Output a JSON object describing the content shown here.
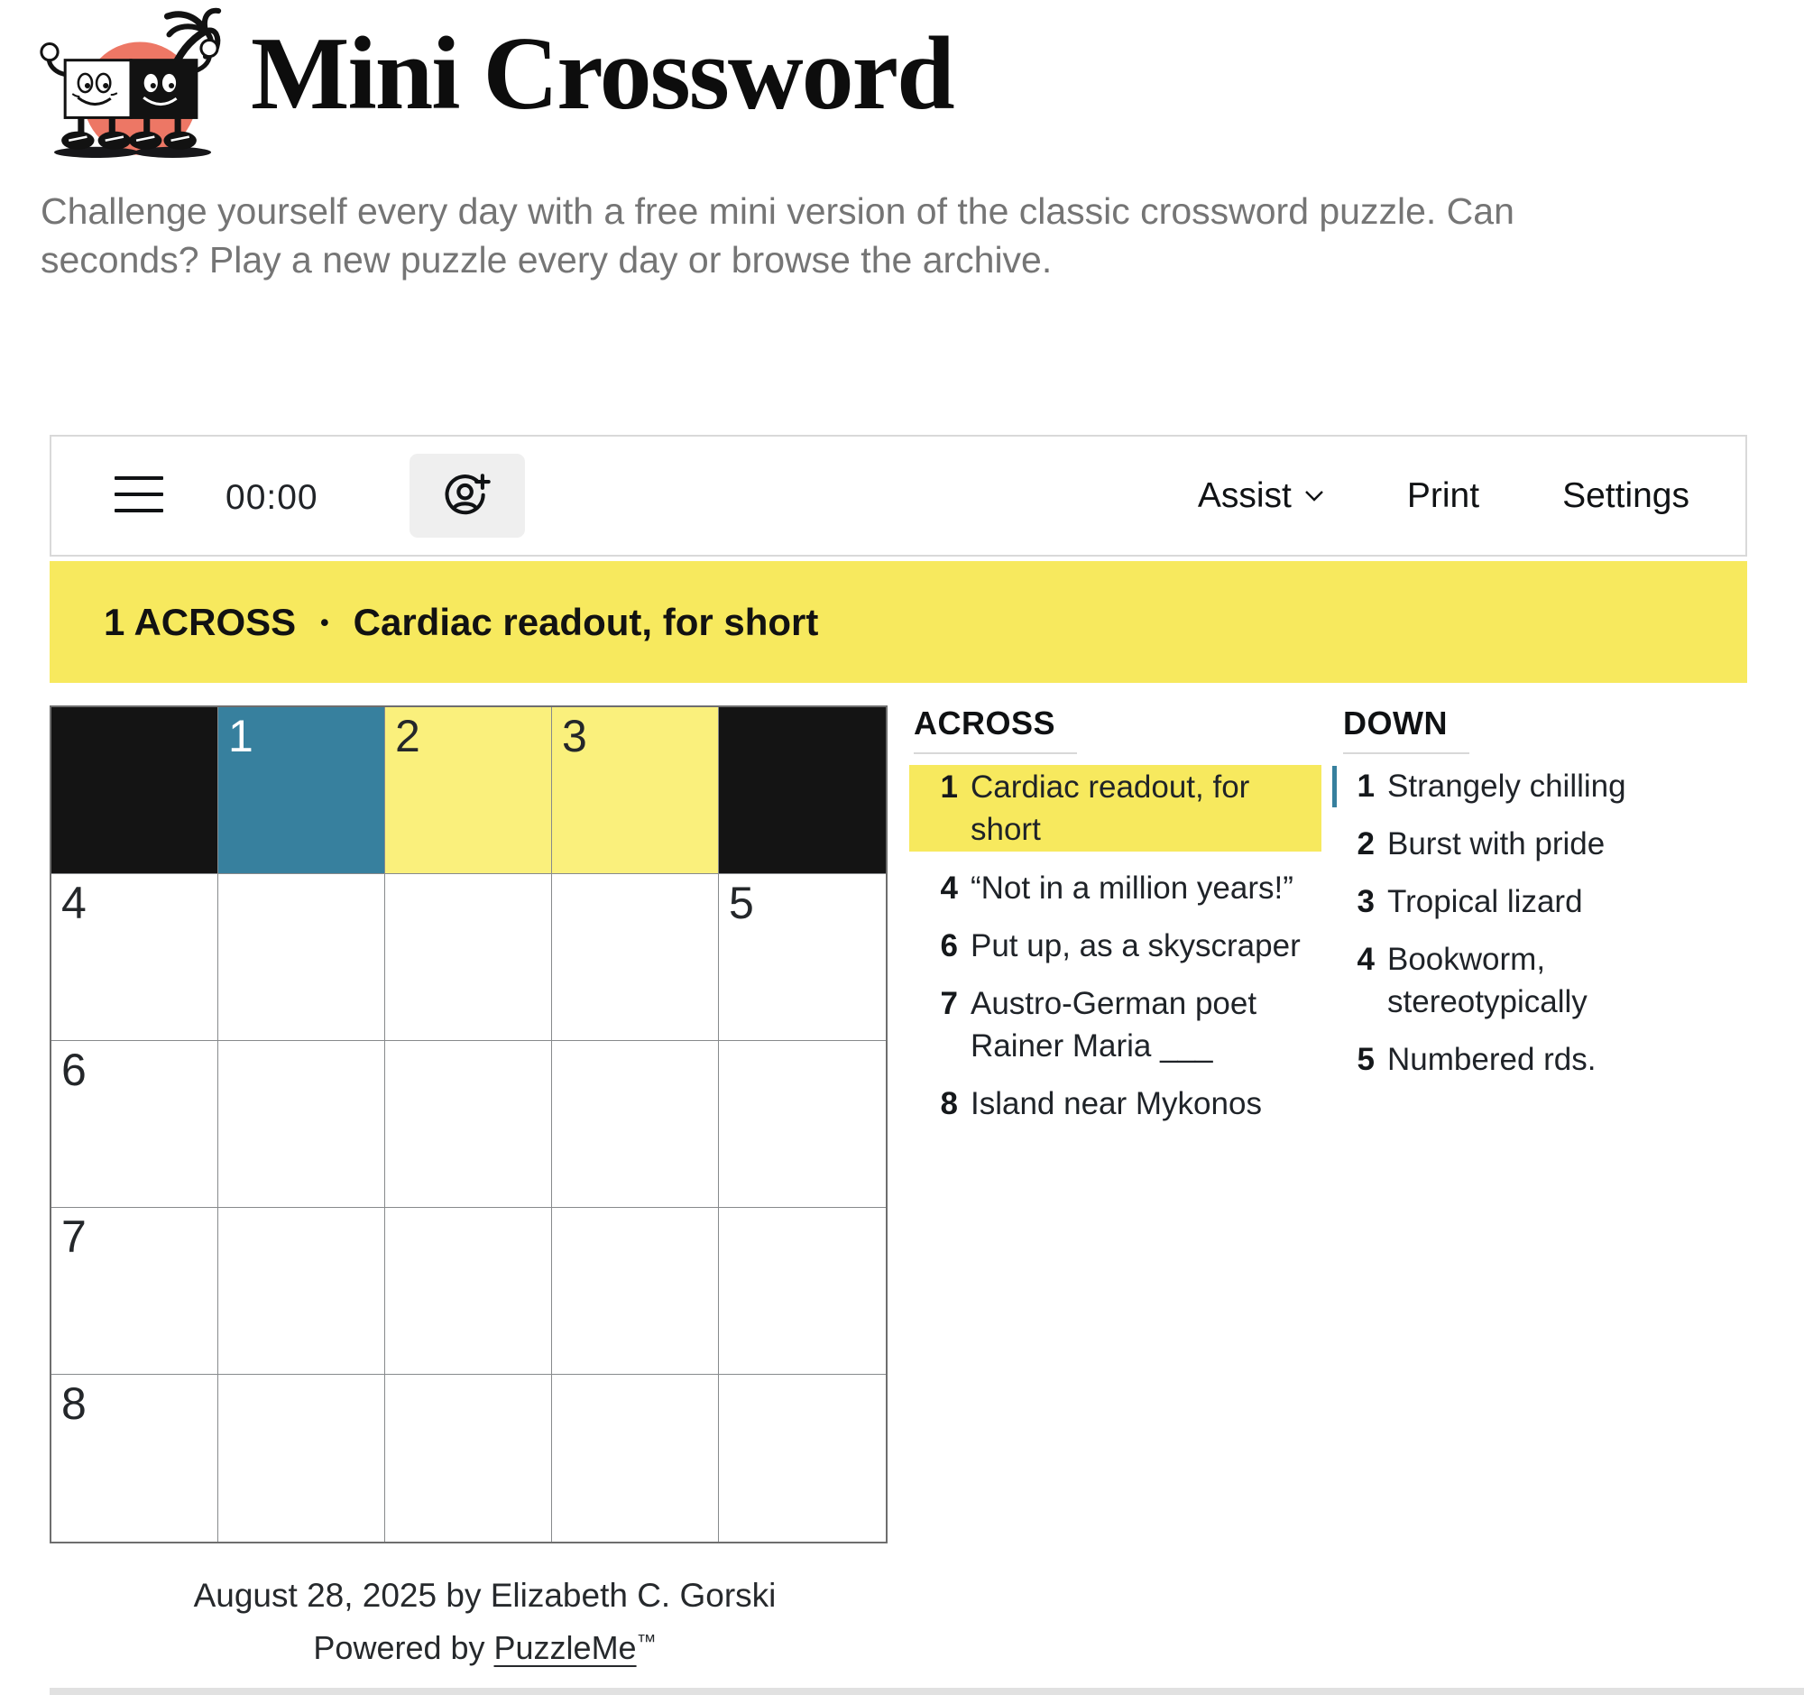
{
  "page": {
    "title": "Mini Crossword",
    "tagline_line1": "Challenge yourself every day with a free mini version of the classic crossword puzzle. Can",
    "tagline_line2": "seconds? Play a new puzzle every day or browse the archive."
  },
  "toolbar": {
    "timer": "00:00",
    "assist_label": "Assist",
    "print_label": "Print",
    "settings_label": "Settings"
  },
  "clue_banner": {
    "label": "1 ACROSS",
    "separator": "•",
    "text": "Cardiac readout, for short"
  },
  "grid": {
    "rows": [
      [
        {
          "type": "block"
        },
        {
          "type": "cell",
          "number": "1",
          "variant": "selected"
        },
        {
          "type": "cell",
          "number": "2",
          "variant": "highlight"
        },
        {
          "type": "cell",
          "number": "3",
          "variant": "highlight"
        },
        {
          "type": "block"
        }
      ],
      [
        {
          "type": "cell",
          "number": "4"
        },
        {
          "type": "cell"
        },
        {
          "type": "cell"
        },
        {
          "type": "cell"
        },
        {
          "type": "cell",
          "number": "5"
        }
      ],
      [
        {
          "type": "cell",
          "number": "6"
        },
        {
          "type": "cell"
        },
        {
          "type": "cell"
        },
        {
          "type": "cell"
        },
        {
          "type": "cell"
        }
      ],
      [
        {
          "type": "cell",
          "number": "7"
        },
        {
          "type": "cell"
        },
        {
          "type": "cell"
        },
        {
          "type": "cell"
        },
        {
          "type": "cell"
        }
      ],
      [
        {
          "type": "cell",
          "number": "8"
        },
        {
          "type": "cell"
        },
        {
          "type": "cell"
        },
        {
          "type": "cell"
        },
        {
          "type": "cell"
        }
      ]
    ]
  },
  "clues": {
    "across_title": "ACROSS",
    "down_title": "DOWN",
    "across": [
      {
        "number": "1",
        "text": "Cardiac readout, for short",
        "highlighted": true
      },
      {
        "number": "4",
        "text": "“Not in a million years!”"
      },
      {
        "number": "6",
        "text": "Put up, as a skyscraper"
      },
      {
        "number": "7",
        "text": "Austro-German poet Rainer Maria ___"
      },
      {
        "number": "8",
        "text": "Island near Mykonos"
      }
    ],
    "down": [
      {
        "number": "1",
        "text": "Strangely chilling",
        "marked": true
      },
      {
        "number": "2",
        "text": "Burst with pride"
      },
      {
        "number": "3",
        "text": "Tropical lizard"
      },
      {
        "number": "4",
        "text": "Bookworm, stereotypically"
      },
      {
        "number": "5",
        "text": "Numbered rds."
      }
    ]
  },
  "footer": {
    "byline": "August 28, 2025 by Elizabeth C. Gorski",
    "powered_prefix": "Powered by ",
    "powered_link": "PuzzleMe",
    "powered_suffix": "™"
  },
  "colors": {
    "accent_yellow": "#F7E95E",
    "cell_yellow": "#FAF07C",
    "selection_blue": "#37809E",
    "block_black": "#141414",
    "sun_coral": "#ED7765"
  }
}
